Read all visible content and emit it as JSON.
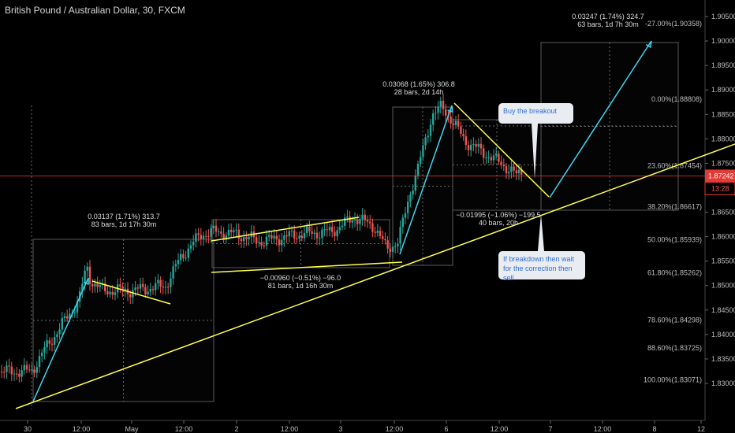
{
  "header": {
    "title": "British Pound / Australian Dollar, 30, FXCM"
  },
  "chart_data": {
    "type": "candlestick",
    "title": "British Pound / Australian Dollar, 30, FXCM",
    "ylim": [
      1.8285,
      1.9085
    ],
    "y_ticks": [
      "1.90500",
      "1.90000",
      "1.89500",
      "1.89000",
      "1.88500",
      "1.88000",
      "1.87500",
      "1.87000",
      "1.86500",
      "1.86000",
      "1.85500",
      "1.85000",
      "1.84500",
      "1.84000",
      "1.83500",
      "1.83000"
    ],
    "x_ticks": [
      "30",
      "12:00",
      "May",
      "12:00",
      "2",
      "12:00",
      "3",
      "12:00",
      "6",
      "12:00",
      "7",
      "12:00",
      "8",
      "12"
    ],
    "price_label": "1.87242",
    "timer_label": "13:28",
    "fib_levels": [
      {
        "label": "-27.00%(1.90358)",
        "value": 1.90358
      },
      {
        "label": "0.00%(1.88808)",
        "value": 1.88808
      },
      {
        "label": "23.60%(1.87454)",
        "value": 1.87454
      },
      {
        "label": "38.20%(1.86617)",
        "value": 1.86617
      },
      {
        "label": "50.00%(1.85939)",
        "value": 1.85939
      },
      {
        "label": "61.80%(1.85262)",
        "value": 1.85262
      },
      {
        "label": "78.60%(1.84298)",
        "value": 1.84298
      },
      {
        "label": "88.60%(1.83725)",
        "value": 1.83725
      },
      {
        "label": "100.00%(1.83071)",
        "value": 1.83071
      }
    ],
    "measurements": [
      {
        "line1": "0.03137 (1.71%) 313.7",
        "line2": "83 bars, 1d 17h 30m"
      },
      {
        "line1": "−0.00960 (−0.51%) −96.0",
        "line2": "81 bars, 1d 16h 30m"
      },
      {
        "line1": "0.03068 (1.65%) 306.8",
        "line2": "28 bars, 2d 14h"
      },
      {
        "line1": "−0.01995 (−1.06%) −199.5",
        "line2": "40 bars, 20h"
      },
      {
        "line1": "0.03247 (1.74%) 324.7",
        "line2": "63 bars, 1d 7h 30m"
      }
    ],
    "callouts": [
      {
        "text": "Buy the breakout"
      },
      {
        "text": "If breakdown then wait for the correction then sell"
      }
    ],
    "colors": {
      "up": "#26a69a",
      "down": "#ef5350",
      "trend": "#ffff4d",
      "arrow": "#3fd7f0",
      "price_line": "#ff3b3b"
    }
  }
}
